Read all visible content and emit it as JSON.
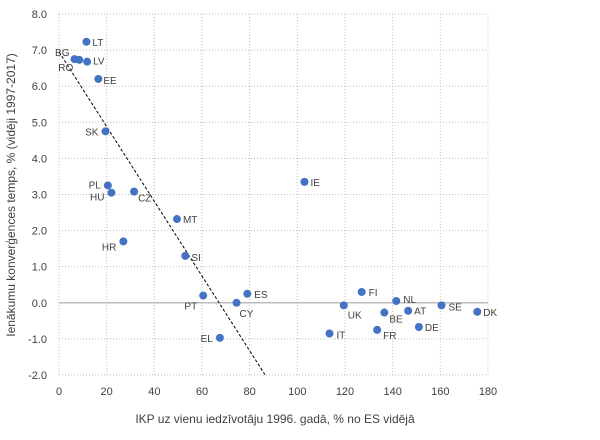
{
  "chart_data": {
    "type": "scatter",
    "title": "",
    "xlabel": "IKP uz vienu iedzīvotāju 1996. gadā, % no ES vidējā",
    "ylabel": "Ienākumu konverģences temps, % (vidēji 1997-2017)",
    "xlim": [
      0,
      180
    ],
    "ylim": [
      -2,
      8
    ],
    "x_ticks": [
      0,
      20,
      40,
      60,
      80,
      100,
      120,
      140,
      160,
      180
    ],
    "y_ticks": [
      -2,
      -1,
      0,
      1,
      2,
      3,
      4,
      5,
      6,
      7,
      8
    ],
    "x_tick_labels": [
      "0",
      "20",
      "40",
      "60",
      "80",
      "100",
      "120",
      "140",
      "160",
      "180"
    ],
    "y_tick_labels": [
      "-2.0",
      "-1.0",
      "0.0",
      "1.0",
      "2.0",
      "3.0",
      "4.0",
      "5.0",
      "6.0",
      "7.0",
      "8.0"
    ],
    "grid": true,
    "legend": "none",
    "point_color": "#4472c4",
    "trendline": {
      "x": [
        0,
        86.5
      ],
      "y": [
        6.95,
        -2.0
      ]
    },
    "points": [
      {
        "label": "LT",
        "x": 11.5,
        "y": 7.23
      },
      {
        "label": "BG",
        "x": 6.5,
        "y": 6.75
      },
      {
        "label": "RO",
        "x": 8.5,
        "y": 6.73
      },
      {
        "label": "LV",
        "x": 11.8,
        "y": 6.68
      },
      {
        "label": "EE",
        "x": 16.5,
        "y": 6.2
      },
      {
        "label": "SK",
        "x": 19.5,
        "y": 4.75
      },
      {
        "label": "PL",
        "x": 20.5,
        "y": 3.25
      },
      {
        "label": "HU",
        "x": 22.0,
        "y": 3.05
      },
      {
        "label": "CZ",
        "x": 31.5,
        "y": 3.08
      },
      {
        "label": "MT",
        "x": 49.5,
        "y": 2.32
      },
      {
        "label": "HR",
        "x": 27.0,
        "y": 1.7
      },
      {
        "label": "SI",
        "x": 53.0,
        "y": 1.3
      },
      {
        "label": "PT",
        "x": 60.5,
        "y": 0.2
      },
      {
        "label": "CY",
        "x": 74.5,
        "y": 0.0
      },
      {
        "label": "ES",
        "x": 79.0,
        "y": 0.25
      },
      {
        "label": "EL",
        "x": 67.5,
        "y": -0.97
      },
      {
        "label": "IE",
        "x": 103.0,
        "y": 3.35
      },
      {
        "label": "UK",
        "x": 119.5,
        "y": -0.07
      },
      {
        "label": "FI",
        "x": 127.0,
        "y": 0.3
      },
      {
        "label": "IT",
        "x": 113.5,
        "y": -0.85
      },
      {
        "label": "BE",
        "x": 136.5,
        "y": -0.27
      },
      {
        "label": "FR",
        "x": 133.5,
        "y": -0.75
      },
      {
        "label": "NL",
        "x": 141.5,
        "y": 0.05
      },
      {
        "label": "AT",
        "x": 146.5,
        "y": -0.22
      },
      {
        "label": "DE",
        "x": 151.0,
        "y": -0.67
      },
      {
        "label": "SE",
        "x": 160.5,
        "y": -0.07
      },
      {
        "label": "DK",
        "x": 175.5,
        "y": -0.25
      }
    ]
  }
}
